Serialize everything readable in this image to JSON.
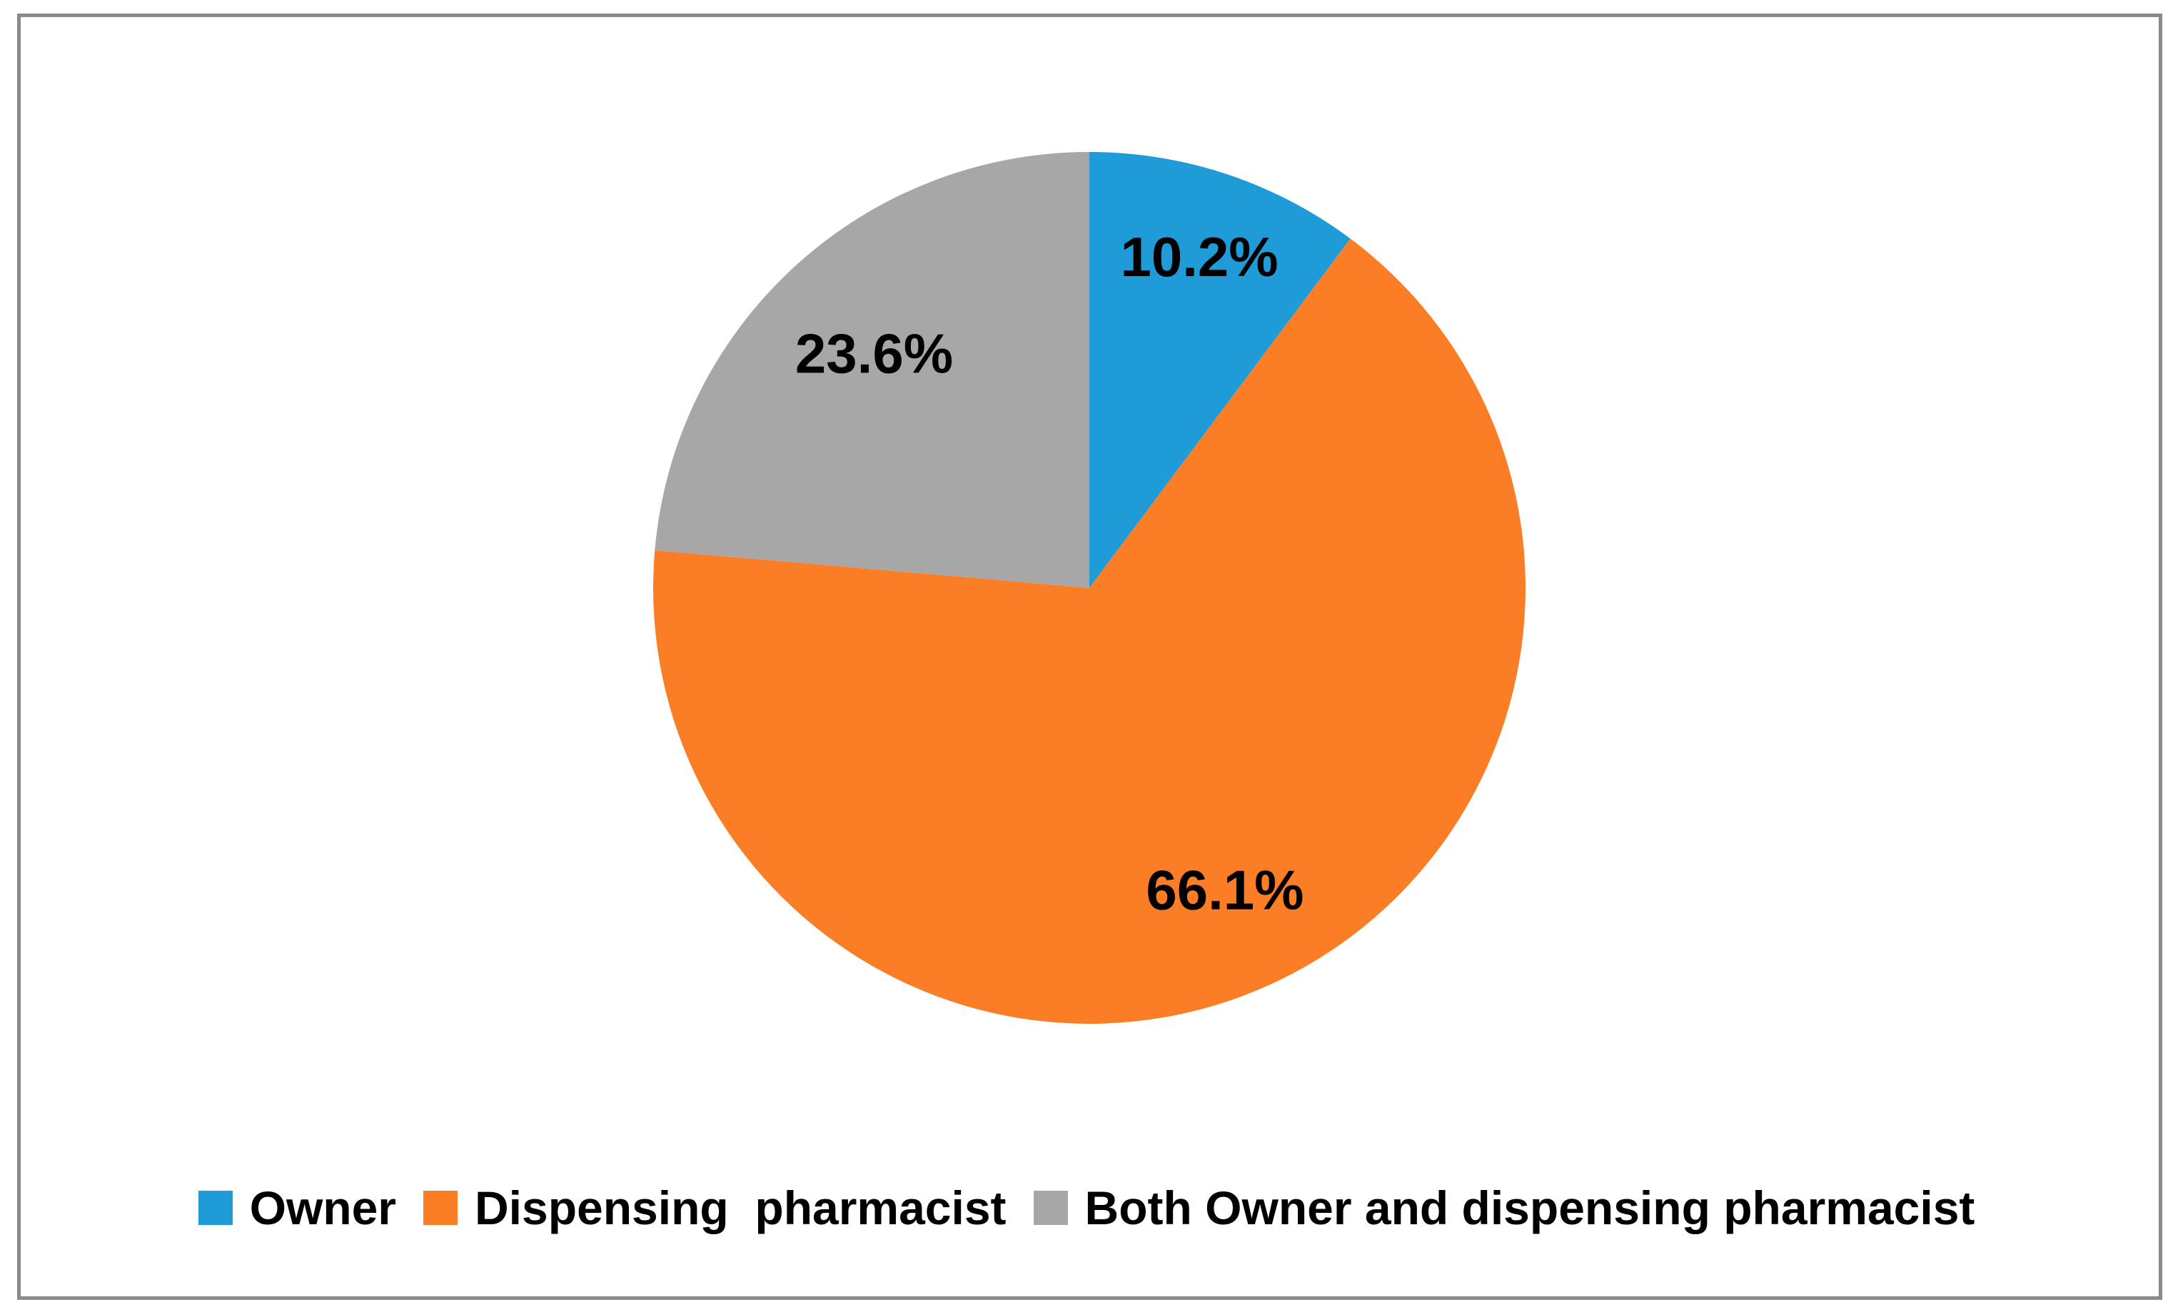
{
  "chart_data": {
    "type": "pie",
    "title": "",
    "direction": "clockwise",
    "start_angle_deg": 0,
    "legend_position": "bottom",
    "background_color": "#ffffff",
    "frame_border_color": "#8A8A8A",
    "label_text_color": "#000000",
    "slices": [
      {
        "label": "Owner",
        "value": 10.2,
        "display": "10.2%",
        "color": "#1F9BD8"
      },
      {
        "label": "Dispensing  pharmacist",
        "value": 66.1,
        "display": "66.1%",
        "color": "#FB7D26"
      },
      {
        "label": "Both Owner and dispensing pharmacist",
        "value": 23.6,
        "display": "23.6%",
        "color": "#A7A7A7"
      }
    ]
  }
}
